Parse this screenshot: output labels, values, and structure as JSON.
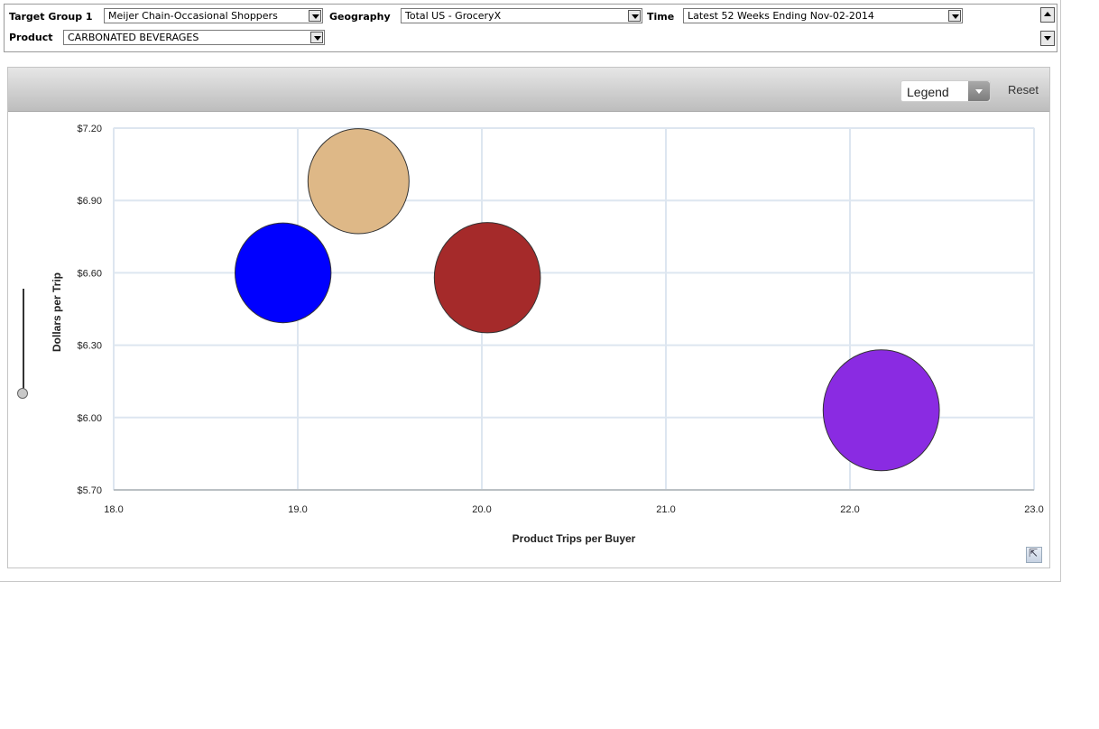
{
  "filters": {
    "target_group_label": "Target Group 1",
    "target_group_value": "Meijer Chain-Occasional Shoppers",
    "geography_label": "Geography",
    "geography_value": "Total US - GroceryX",
    "time_label": "Time",
    "time_value": "Latest 52 Weeks Ending Nov-02-2014",
    "product_label": "Product",
    "product_value": "CARBONATED BEVERAGES"
  },
  "toolbar": {
    "legend_label": "Legend",
    "reset_label": "Reset"
  },
  "chart_data": {
    "type": "scatter",
    "subtype": "bubble",
    "title": "",
    "xlabel": "Product Trips per Buyer",
    "ylabel": "Dollars per Trip",
    "xlim": [
      18.0,
      23.0
    ],
    "ylim": [
      5.7,
      7.2
    ],
    "x_ticks": [
      "18.0",
      "19.0",
      "20.0",
      "21.0",
      "22.0",
      "23.0"
    ],
    "y_ticks": [
      "$5.70",
      "$6.00",
      "$6.30",
      "$6.60",
      "$6.90",
      "$7.20"
    ],
    "grid": true,
    "legend": "hidden",
    "points": [
      {
        "x": 19.33,
        "y": 6.98,
        "size": 1.0,
        "color": "#deb887"
      },
      {
        "x": 18.92,
        "y": 6.6,
        "size": 0.95,
        "color": "#0000ff"
      },
      {
        "x": 20.03,
        "y": 6.58,
        "size": 1.05,
        "color": "#a52a2a"
      },
      {
        "x": 22.17,
        "y": 6.03,
        "size": 1.15,
        "color": "#8a2be2"
      }
    ]
  }
}
